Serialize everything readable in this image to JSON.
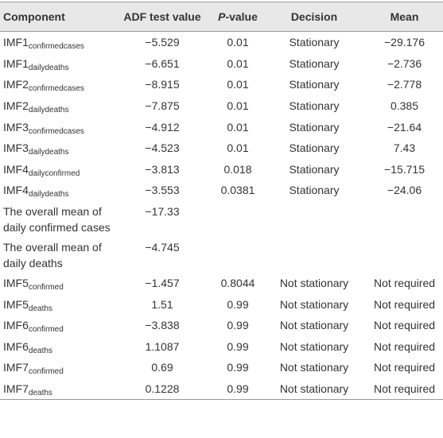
{
  "header": {
    "component": "Component",
    "adf": "ADF test value",
    "p_italic": "P",
    "p_rest": "-value",
    "decision": "Decision",
    "mean": "Mean"
  },
  "rows": [
    {
      "component": "IMF1",
      "sub": "confirmedcases",
      "adf": "−5.529",
      "p": "0.01",
      "decision": "Stationary",
      "mean": "−29.176"
    },
    {
      "component": "IMF1",
      "sub": "dailydeaths",
      "adf": "−6.651",
      "p": "0.01",
      "decision": "Stationary",
      "mean": "−2.736"
    },
    {
      "component": "IMF2",
      "sub": "confirmedcases",
      "adf": "−8.915",
      "p": "0.01",
      "decision": "Stationary",
      "mean": "−2.778"
    },
    {
      "component": "IMF2",
      "sub": "dailydeaths",
      "adf": "−7.875",
      "p": "0.01",
      "decision": "Stationary",
      "mean": "0.385"
    },
    {
      "component": "IMF3",
      "sub": "confirmedcases",
      "adf": "−4.912",
      "p": "0.01",
      "decision": "Stationary",
      "mean": "−21.64"
    },
    {
      "component": "IMF3",
      "sub": "dailydeaths",
      "adf": "−4.523",
      "p": "0.01",
      "decision": "Stationary",
      "mean": "7.43"
    },
    {
      "component": "IMF4",
      "sub": "dailyconfirmed",
      "adf": "−3.813",
      "p": "0.018",
      "decision": "Stationary",
      "mean": "−15.715"
    },
    {
      "component": "IMF4",
      "sub": "dailydeaths",
      "adf": "−3.553",
      "p": "0.0381",
      "decision": "Stationary",
      "mean": "−24.06"
    },
    {
      "component": "The overall mean of daily confirmed cases",
      "adf": "−17.33"
    },
    {
      "component": "The overall mean of daily deaths",
      "adf": "−4.745"
    },
    {
      "component": "IMF5",
      "sub": "confirmed",
      "adf": "−1.457",
      "p": "0.8044",
      "decision": "Not stationary",
      "mean": "Not required"
    },
    {
      "component": "IMF5",
      "sub": "deaths",
      "adf": "1.51",
      "p": "0.99",
      "decision": "Not stationary",
      "mean": "Not required"
    },
    {
      "component": "IMF6",
      "sub": "confirmed",
      "adf": "−3.838",
      "p": "0.99",
      "decision": "Not stationary",
      "mean": "Not required"
    },
    {
      "component": "IMF6",
      "sub": "deaths",
      "adf": "1.1087",
      "p": "0.99",
      "decision": "Not stationary",
      "mean": "Not required"
    },
    {
      "component": "IMF7",
      "sub": "confirmed",
      "adf": "0.69",
      "p": "0.99",
      "decision": "Not stationary",
      "mean": "Not required"
    },
    {
      "component": "IMF7",
      "sub": "deaths",
      "adf": "0.1228",
      "p": "0.99",
      "decision": "Not stationary",
      "mean": "Not required"
    }
  ]
}
